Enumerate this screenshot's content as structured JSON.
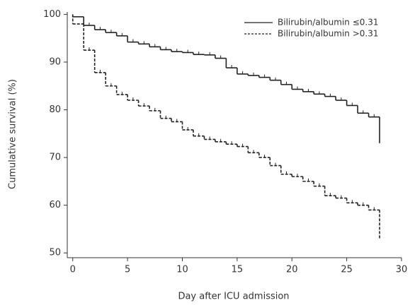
{
  "chart_data": {
    "type": "step",
    "x_label": "Day after ICU admission",
    "y_label": "Cumulative survival (%)",
    "x": [
      0,
      1,
      2,
      3,
      4,
      5,
      6,
      7,
      8,
      9,
      10,
      11,
      12,
      13,
      14,
      15,
      16,
      17,
      18,
      19,
      20,
      21,
      22,
      23,
      24,
      25,
      26,
      27,
      28
    ],
    "series": [
      {
        "name": "Bilirubin/albumin ≤0.31",
        "color": "#222222",
        "dash": false,
        "values": [
          99.5,
          97.7,
          96.8,
          96.2,
          95.5,
          94.2,
          93.8,
          93.2,
          92.6,
          92.2,
          92.0,
          91.6,
          91.5,
          90.8,
          88.8,
          87.5,
          87.2,
          86.8,
          86.2,
          85.3,
          84.3,
          83.8,
          83.3,
          82.8,
          82.0,
          80.9,
          79.3,
          78.5,
          73
        ]
      },
      {
        "name": "Bilirubin/albumin >0.31",
        "color": "#222222",
        "dash": true,
        "values": [
          98,
          92.5,
          87.8,
          85,
          83.2,
          82,
          80.8,
          79.8,
          78.2,
          77.5,
          75.8,
          74.5,
          73.8,
          73.3,
          72.8,
          72.3,
          71,
          70,
          68.3,
          66.5,
          66,
          65,
          64,
          62,
          61.5,
          60.5,
          60,
          59,
          53
        ]
      }
    ],
    "xlim": [
      -0.5,
      30
    ],
    "ylim": [
      49,
      100.5
    ],
    "xticks": [
      0,
      5,
      10,
      15,
      20,
      25,
      30
    ],
    "yticks": [
      50,
      60,
      70,
      80,
      90,
      100
    ],
    "legend": "upper right"
  }
}
